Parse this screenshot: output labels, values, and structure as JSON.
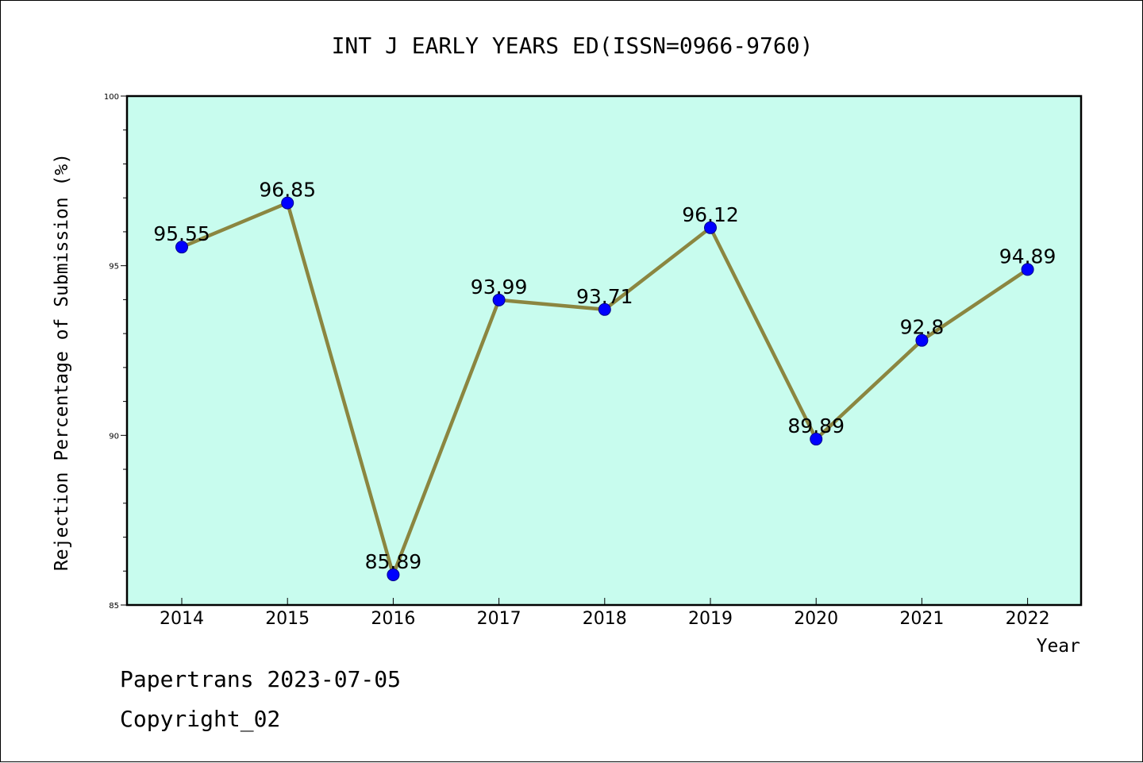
{
  "chart_data": {
    "type": "line",
    "title": "INT J EARLY YEARS ED(ISSN=0966-9760)",
    "xlabel": "Year",
    "ylabel": "Rejection Percentage of Submission (%)",
    "categories": [
      "2014",
      "2015",
      "2016",
      "2017",
      "2018",
      "2019",
      "2020",
      "2021",
      "2022"
    ],
    "series": [
      {
        "values": [
          95.55,
          96.85,
          85.89,
          93.99,
          93.71,
          96.12,
          89.89,
          92.8,
          94.89
        ],
        "labels": [
          "95.55",
          "96.85",
          "85.89",
          "93.99",
          "93.71",
          "96.12",
          "89.89",
          "92.8",
          "94.89"
        ]
      }
    ],
    "ylim": [
      85,
      100
    ],
    "yticks": [
      "85",
      "90",
      "95",
      "100"
    ],
    "grid": false,
    "legend": "none",
    "colors": {
      "plot_background": "#c8fcee",
      "line": "#8b8640",
      "marker": "#0000ff",
      "marker_edge": "#00008b"
    }
  },
  "footer": {
    "line1": "Papertrans 2023-07-05",
    "line2": "Copyright_02"
  }
}
